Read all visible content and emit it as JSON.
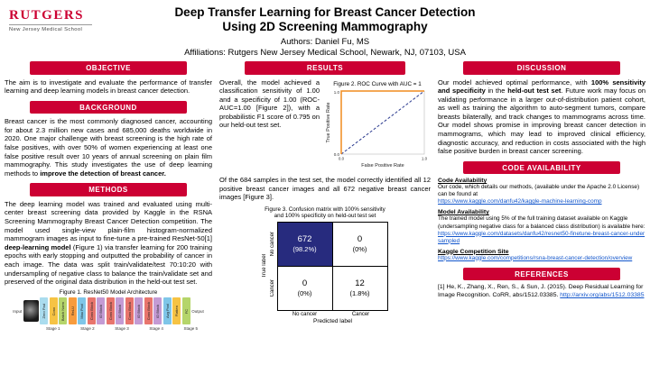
{
  "colors": {
    "rutgers_red": "#cc0033",
    "link_blue": "#1155cc",
    "matrix_dark": "#272b7e",
    "roc_curve_orange": "#f08c1e",
    "roc_chance_navy": "#2b3a8f"
  },
  "header": {
    "logo_name": "RUTGERS",
    "logo_subtitle": "New Jersey Medical School",
    "title_line1": "Deep Transfer Learning for Breast Cancer Detection",
    "title_line2": "Using 2D Screening Mammography",
    "authors": "Authors: Daniel Fu, MS",
    "affiliations": "Affiliations: Rutgers New Jersey Medical School, Newark, NJ, 07103, USA"
  },
  "objective": {
    "heading": "OBJECTIVE",
    "body": "The aim is to investigate and evaluate the performance of transfer learning and deep learning models in breast cancer detection."
  },
  "background": {
    "heading": "BACKGROUND",
    "body": "Breast cancer is the most commonly diagnosed cancer, accounting for about 2.3 million new cases and 685,000 deaths worldwide in 2020. One major challenge with breast screening is the high rate of false positives, with over 50% of women experiencing at least one false positive result over 10 years of annual screening on plain film mammography. This study investigates the use of deep learning methods to ",
    "body_bold": "improve the detection of breast cancer."
  },
  "methods": {
    "heading": "METHODS",
    "body_1": "The deep learning model was trained and evaluated using multi-center breast screening data provided by Kaggle in the RSNA Screening Mammography Breast Cancer Detection competition. The model used single-view plain-film histogram-normalized mammogram images as input to fine-tune a pre-trained ResNet-50[1] ",
    "body_bold": "deep-learning model",
    "body_2": " (Figure 1) via transfer learning for 200 training epochs with early stopping and outputted the probability of cancer in each image. The data was split train/validate/test 70:10:20 with undersampling of negative class to balance the train/validate set and preserved of the original data distribution in the held-out test set.",
    "figure1_caption": "Figure 1. ResNet50 Model Architecture",
    "input_label": "Input",
    "output_label": "Output",
    "blocks": [
      {
        "label": "Zero Pad",
        "color": "#aadcee"
      },
      {
        "label": "Conv",
        "color": "#f6c344"
      },
      {
        "label": "Batch Norm",
        "color": "#b5d56a"
      },
      {
        "label": "ReLU",
        "color": "#f89c3e"
      },
      {
        "label": "Max Pool",
        "color": "#7fc6e8"
      },
      {
        "label": "Conv Block",
        "color": "#e8756d"
      },
      {
        "label": "ID Block",
        "color": "#c49bd4"
      },
      {
        "label": "Conv Block",
        "color": "#e8756d"
      },
      {
        "label": "ID Block",
        "color": "#c49bd4"
      },
      {
        "label": "Conv Block",
        "color": "#e8756d"
      },
      {
        "label": "ID Block",
        "color": "#c49bd4"
      },
      {
        "label": "Conv Block",
        "color": "#e8756d"
      },
      {
        "label": "ID Block",
        "color": "#c49bd4"
      },
      {
        "label": "Avg Pool",
        "color": "#7fc6e8"
      },
      {
        "label": "Flatten",
        "color": "#f6c344"
      },
      {
        "label": "FC",
        "color": "#b5d56a"
      }
    ],
    "stages": [
      "Stage 1",
      "Stage 2",
      "Stage 3",
      "Stage 4",
      "Stage 5"
    ]
  },
  "results": {
    "heading": "RESULTS",
    "body_1": "Overall, the model achieved a classification sensitivity of 1.00 and a specificity of 1.00 (ROC-AUC=1.00 [Figure 2]), with a probabilistic F1 score of 0.795 on our held-out test set.",
    "figure2_caption": "Figure 2. ROC Curve with AUC = 1",
    "roc": {
      "xlabel": "False Positive Rate",
      "ylabel": "True Positive Rate",
      "x_ticks": [
        "0.0",
        "1.0"
      ],
      "y_ticks": [
        "0.0",
        "1.0"
      ]
    },
    "body_2": "Of the 684 samples in the test set, the model correctly identified all 12 positive breast cancer images and all 672 negative breast cancer images [Figure 3].",
    "figure3_caption_1": "Figure 3. Confusion matrix with 100% sensitivity",
    "figure3_caption_2": "and 100% specificity on held-out test set",
    "matrix": {
      "ylabel": "True label",
      "xlabel": "Predicted label",
      "row_labels": [
        "No cancer",
        "Cancer"
      ],
      "col_labels": [
        "No cancer",
        "Cancer"
      ],
      "cells": [
        {
          "n": "672",
          "p": "(98.2%)"
        },
        {
          "n": "0",
          "p": "(0%)"
        },
        {
          "n": "0",
          "p": "(0%)"
        },
        {
          "n": "12",
          "p": "(1.8%)"
        }
      ]
    }
  },
  "discussion": {
    "heading": "DISCUSSION",
    "body_1": "Our model achieved optimal performance, with ",
    "bold_1": "100% sensitivity and specificity",
    "body_2": " in the ",
    "bold_2": "held-out test set",
    "body_3": ". Future work may focus on validating performance in a larger out-of-distribution patient cohort, as well as training the algorithm to auto-segment tumors, compare breasts bilaterally, and track changes to mammograms across time. Our model shows promise in improving breast cancer detection in mammograms, which may lead to improved clinical efficiency, diagnostic accuracy, and reduction in costs associated with the high false positive burden in breast cancer screening."
  },
  "code_availability": {
    "heading": "CODE AVAILABILITY",
    "sub_1": "Code Availability",
    "text_1": "Our code, which details our methods, (available under the Apache 2.0 License) can be found at",
    "link_1": "https://www.kaggle.com/danfu42/kaggle-machine-learning-comp",
    "sub_2": "Model Availability",
    "text_2": "The trained model using 5% of the full training dataset available on Kaggle (undersampling negative class for a balanced class distribution) is available here:",
    "link_2": "https://www.kaggle.com/datasets/danfu42/resnet50-finetune-breast-cancer-undersampled",
    "sub_3": "Kaggle Competition Site",
    "link_3": "https://www.kaggle.com/competitions/rsna-breast-cancer-detection/overview"
  },
  "references": {
    "heading": "REFERENCES",
    "text": "[1] He, K., Zhang, X., Ren, S., & Sun, J. (2015). Deep Residual Learning for Image Recognition. CoRR, abs/1512.03385. ",
    "link": "http://arxiv.org/abs/1512.03385"
  },
  "chart_data": [
    {
      "type": "line",
      "title": "Figure 2. ROC Curve with AUC = 1",
      "xlabel": "False Positive Rate",
      "ylabel": "True Positive Rate",
      "xlim": [
        0,
        1
      ],
      "ylim": [
        0,
        1
      ],
      "series": [
        {
          "name": "ROC curve (AUC = 1.00)",
          "x": [
            0,
            0,
            1
          ],
          "y": [
            0,
            1,
            1
          ],
          "style": "solid"
        },
        {
          "name": "chance line",
          "x": [
            0,
            1
          ],
          "y": [
            0,
            1
          ],
          "style": "dashed"
        }
      ]
    },
    {
      "type": "heatmap",
      "title": "Figure 3. Confusion matrix",
      "xlabel": "Predicted label",
      "ylabel": "True label",
      "categories_x": [
        "No cancer",
        "Cancer"
      ],
      "categories_y": [
        "No cancer",
        "Cancer"
      ],
      "values": [
        [
          672,
          0
        ],
        [
          0,
          12
        ]
      ],
      "percentages": [
        [
          "98.2%",
          "0%"
        ],
        [
          "0%",
          "1.8%"
        ]
      ]
    }
  ]
}
